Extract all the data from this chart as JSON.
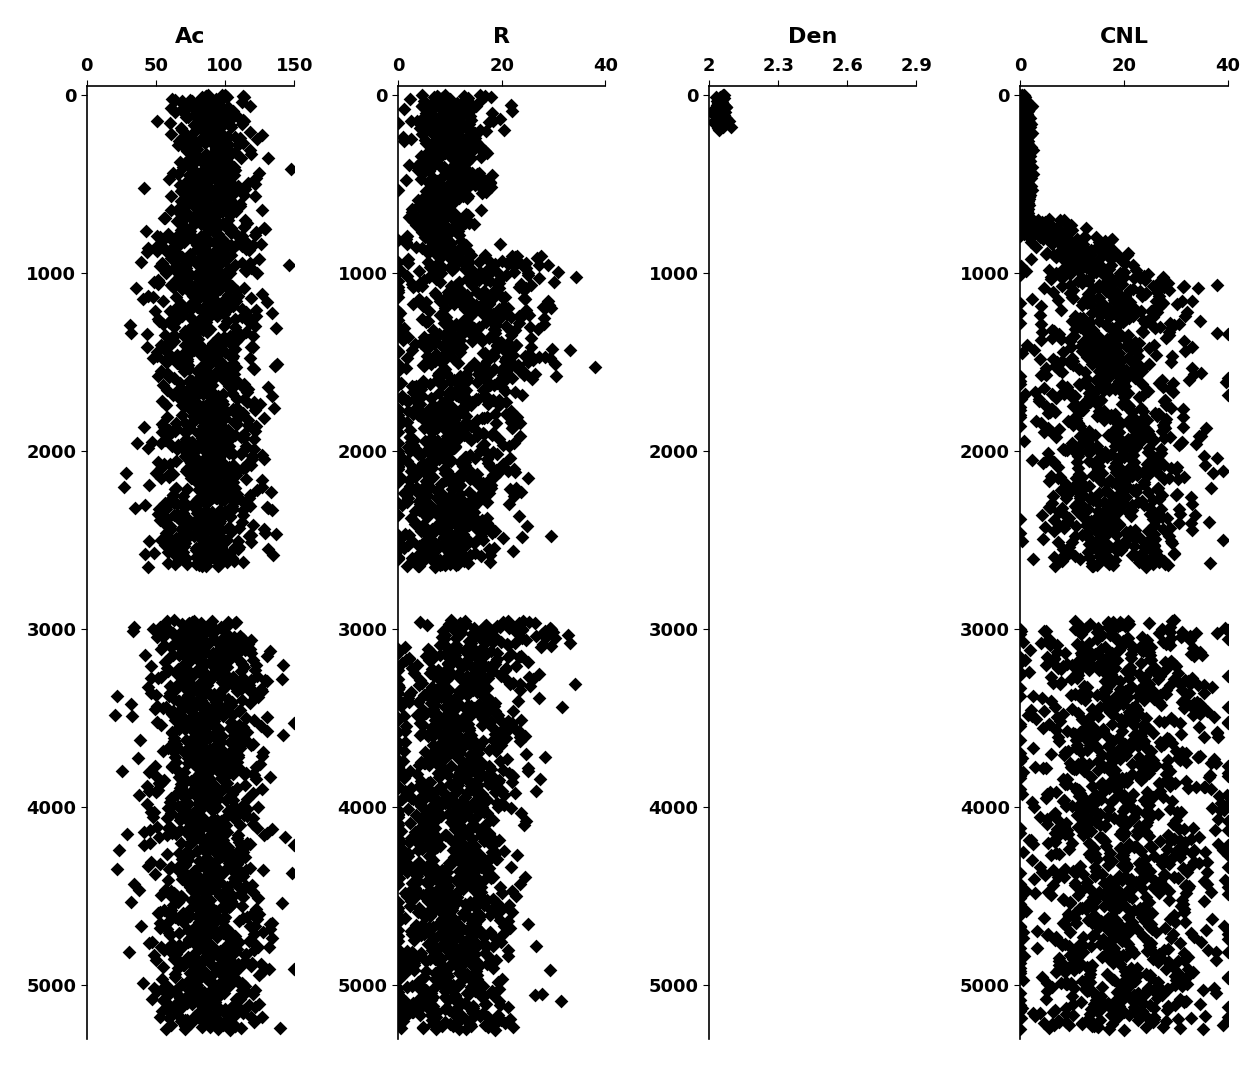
{
  "panels": [
    {
      "title": "Ac",
      "xlim": [
        0,
        150
      ],
      "xticks": [
        0,
        50,
        100,
        150
      ],
      "xticklabels": [
        "0",
        "50",
        "100",
        "150"
      ]
    },
    {
      "title": "R",
      "xlim": [
        0,
        40
      ],
      "xticks": [
        0,
        20,
        40
      ],
      "xticklabels": [
        "0",
        "20",
        "40"
      ]
    },
    {
      "title": "Den",
      "xlim": [
        2,
        2.9
      ],
      "xticks": [
        2,
        2.3,
        2.6,
        2.9
      ],
      "xticklabels": [
        "2",
        "2.3",
        "2.6",
        "2.9"
      ]
    },
    {
      "title": "CNL",
      "xlim": [
        0,
        40
      ],
      "xticks": [
        0,
        20,
        40
      ],
      "xticklabels": [
        "0",
        "20",
        "40"
      ]
    }
  ],
  "ylim": [
    5300,
    -50
  ],
  "yticks": [
    0,
    1000,
    2000,
    3000,
    4000,
    5000
  ],
  "marker": "D",
  "markersize": 7,
  "color": "black",
  "background": "white",
  "title_fontsize": 16,
  "tick_fontsize": 13
}
